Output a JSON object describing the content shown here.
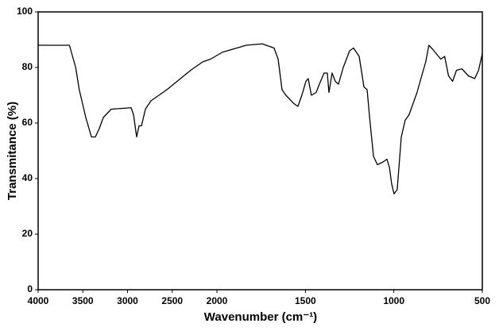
{
  "chart_data": {
    "type": "line",
    "xlabel": "Wavenumber (cm⁻¹)",
    "ylabel": "Transmitance (%)",
    "x": [
      4000,
      3650,
      3580,
      3540,
      3467,
      3404,
      3360,
      3316,
      3271,
      3182,
      2960,
      2933,
      2898,
      2871,
      2844,
      2800,
      2738,
      2560,
      2293,
      2160,
      2071,
      1969,
      1834,
      1744,
      1677,
      1654,
      1632,
      1610,
      1565,
      1542,
      1520,
      1497,
      1484,
      1466,
      1439,
      1421,
      1394,
      1376,
      1367,
      1349,
      1331,
      1313,
      1286,
      1250,
      1228,
      1196,
      1169,
      1151,
      1137,
      1115,
      1093,
      1061,
      1039,
      1025,
      1012,
      999,
      981,
      958,
      936,
      914,
      869,
      838,
      820,
      802,
      780,
      735,
      713,
      691,
      668,
      646,
      615,
      579,
      543,
      521,
      500
    ],
    "values": [
      88,
      88,
      80,
      72,
      62,
      55,
      55,
      58,
      62,
      65,
      65.5,
      63,
      55,
      59,
      59,
      65,
      68,
      72,
      79,
      82,
      83,
      85.5,
      88,
      88.5,
      87,
      83,
      72,
      70,
      67,
      66,
      70,
      75,
      76,
      70,
      71,
      74,
      78,
      78,
      71,
      78,
      75,
      74,
      80,
      86,
      87,
      84,
      73,
      72,
      62,
      48,
      45,
      46,
      47,
      44,
      38,
      34.5,
      36,
      55,
      61,
      63,
      71,
      78,
      82,
      88,
      86.5,
      83,
      84,
      77,
      75,
      79,
      79.5,
      77,
      76,
      79,
      85
    ],
    "color": "#000000",
    "xlim": [
      4000,
      500
    ],
    "xticks": [
      4000,
      3500,
      3000,
      2500,
      2000,
      1500,
      1000,
      500
    ],
    "x_scale_break": 2000,
    "ylim": [
      0,
      100
    ],
    "yticks": [
      0,
      20,
      40,
      60,
      80,
      100
    ]
  }
}
